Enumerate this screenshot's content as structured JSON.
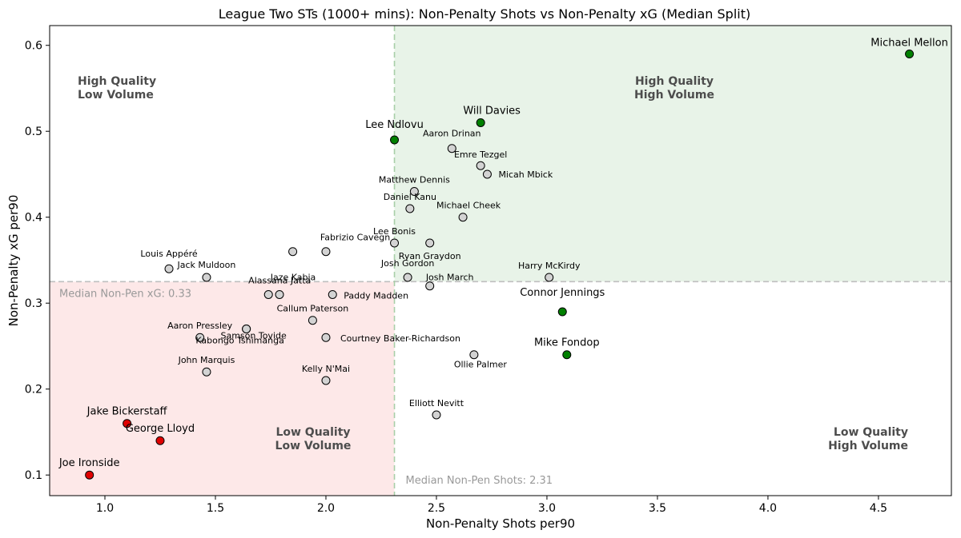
{
  "chart_data": {
    "type": "scatter",
    "title": "League Two STs (1000+ mins): Non-Penalty Shots vs Non-Penalty xG (Median Split)",
    "xlabel": "Non-Penalty Shots per90",
    "ylabel": "Non-Penalty xG per90",
    "xlim": [
      0.75,
      4.83
    ],
    "ylim": [
      0.076,
      0.623
    ],
    "xticks": [
      1.0,
      1.5,
      2.0,
      2.5,
      3.0,
      3.5,
      4.0,
      4.5
    ],
    "xtick_labels": [
      "1.0",
      "1.5",
      "2.0",
      "2.5",
      "3.0",
      "3.5",
      "4.0",
      "4.5"
    ],
    "yticks": [
      0.1,
      0.2,
      0.3,
      0.4,
      0.5,
      0.6
    ],
    "ytick_labels": [
      "0.1",
      "0.2",
      "0.3",
      "0.4",
      "0.5",
      "0.6"
    ],
    "median_x": 2.31,
    "median_y": 0.325,
    "median_x_label": "Median Non-Pen Shots: 2.31",
    "median_y_label": "Median Non-Pen xG: 0.33",
    "quadrants": [
      {
        "label": "High Quality\nLow Volume",
        "position": "top-left"
      },
      {
        "label": "High Quality\nHigh Volume",
        "position": "top-right"
      },
      {
        "label": "Low Quality\nLow Volume",
        "position": "bottom-left"
      },
      {
        "label": "Low Quality\nHigh Volume",
        "position": "bottom-right"
      }
    ],
    "colors": {
      "high": "#008000",
      "low": "#e00000",
      "neutral": "#d3d3d3",
      "top_right_fill": "#e8f3e8",
      "bottom_left_fill": "#fde8e8",
      "median_line": "#bfbfbf",
      "median_x_line": "#a8cfa8"
    },
    "points": [
      {
        "name": "Michael Mellon",
        "x": 4.64,
        "y": 0.59,
        "group": "high"
      },
      {
        "name": "Will Davies",
        "x": 2.7,
        "y": 0.51,
        "group": "high"
      },
      {
        "name": "Lee Ndlovu",
        "x": 2.31,
        "y": 0.49,
        "group": "high"
      },
      {
        "name": "Connor Jennings",
        "x": 3.07,
        "y": 0.29,
        "group": "high"
      },
      {
        "name": "Mike Fondop",
        "x": 3.09,
        "y": 0.24,
        "group": "high"
      },
      {
        "name": "Jake Bickerstaff",
        "x": 1.1,
        "y": 0.16,
        "group": "low"
      },
      {
        "name": "George Lloyd",
        "x": 1.25,
        "y": 0.14,
        "group": "low"
      },
      {
        "name": "Joe Ironside",
        "x": 0.93,
        "y": 0.1,
        "group": "low"
      },
      {
        "name": "Aaron Drinan",
        "x": 2.57,
        "y": 0.48,
        "group": "neutral"
      },
      {
        "name": "Emre Tezgel",
        "x": 2.7,
        "y": 0.46,
        "group": "neutral"
      },
      {
        "name": "Micah Mbick",
        "x": 2.73,
        "y": 0.45,
        "group": "neutral"
      },
      {
        "name": "Matthew Dennis",
        "x": 2.4,
        "y": 0.43,
        "group": "neutral"
      },
      {
        "name": "Daniel Kanu",
        "x": 2.38,
        "y": 0.41,
        "group": "neutral"
      },
      {
        "name": "Michael Cheek",
        "x": 2.62,
        "y": 0.4,
        "group": "neutral"
      },
      {
        "name": "Lee Bonis",
        "x": 2.31,
        "y": 0.37,
        "group": "neutral"
      },
      {
        "name": "Ryan Graydon",
        "x": 2.47,
        "y": 0.37,
        "group": "neutral"
      },
      {
        "name": "Fabrizio Cavegn",
        "x": 1.85,
        "y": 0.36,
        "group": "neutral"
      },
      {
        "name": "",
        "x": 2.0,
        "y": 0.36,
        "group": "neutral"
      },
      {
        "name": "Louis Appéré",
        "x": 1.29,
        "y": 0.34,
        "group": "neutral"
      },
      {
        "name": "Jack Muldoon",
        "x": 1.46,
        "y": 0.33,
        "group": "neutral"
      },
      {
        "name": "Jaze Kabia",
        "x": 1.79,
        "y": 0.31,
        "group": "neutral"
      },
      {
        "name": "Josh Gordon",
        "x": 2.37,
        "y": 0.33,
        "group": "neutral"
      },
      {
        "name": "Josh March",
        "x": 2.47,
        "y": 0.32,
        "group": "neutral"
      },
      {
        "name": "Harry McKirdy",
        "x": 3.01,
        "y": 0.33,
        "group": "neutral"
      },
      {
        "name": "Alassana Jatta",
        "x": 1.74,
        "y": 0.31,
        "group": "neutral"
      },
      {
        "name": "Paddy Madden",
        "x": 2.03,
        "y": 0.31,
        "group": "neutral"
      },
      {
        "name": "Kabongo Tshimanga",
        "x": 1.64,
        "y": 0.27,
        "group": "neutral"
      },
      {
        "name": "Callum Paterson",
        "x": 1.94,
        "y": 0.28,
        "group": "neutral"
      },
      {
        "name": "Aaron Pressley",
        "x": 1.43,
        "y": 0.26,
        "group": "neutral"
      },
      {
        "name": "Samson Tovide",
        "x": 1.64,
        "y": 0.27,
        "group": "neutral"
      },
      {
        "name": "Courtney Baker-Richardson",
        "x": 2.0,
        "y": 0.26,
        "group": "neutral"
      },
      {
        "name": "Ollie Palmer",
        "x": 2.67,
        "y": 0.24,
        "group": "neutral"
      },
      {
        "name": "John Marquis",
        "x": 1.46,
        "y": 0.22,
        "group": "neutral"
      },
      {
        "name": "Kelly N'Mai",
        "x": 2.0,
        "y": 0.21,
        "group": "neutral"
      },
      {
        "name": "Elliott Nevitt",
        "x": 2.5,
        "y": 0.17,
        "group": "neutral"
      }
    ]
  }
}
